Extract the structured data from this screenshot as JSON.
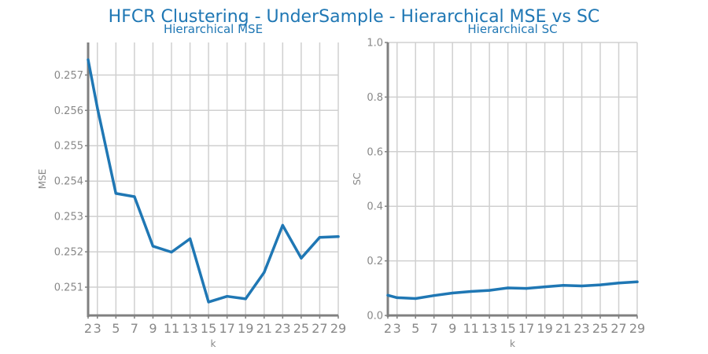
{
  "suptitle": "HFCR Clustering - UnderSample - Hierarchical MSE vs SC",
  "chart_data": [
    {
      "type": "line",
      "title": "Hierarchical MSE",
      "xlabel": "k",
      "ylabel": "MSE",
      "x": [
        2,
        3,
        5,
        7,
        9,
        11,
        13,
        15,
        17,
        19,
        21,
        23,
        25,
        27,
        29
      ],
      "xticks": [
        2,
        3,
        5,
        7,
        9,
        11,
        13,
        15,
        17,
        19,
        21,
        23,
        25,
        27,
        29
      ],
      "xtick_labels": [
        "2",
        "3",
        "5",
        "7",
        "9",
        "11",
        "13",
        "15",
        "17",
        "19",
        "21",
        "23",
        "25",
        "27",
        "29"
      ],
      "xlim": [
        2,
        29
      ],
      "series": [
        {
          "values": [
            0.25743,
            0.25607,
            0.25365,
            0.25356,
            0.25216,
            0.25199,
            0.25237,
            0.25058,
            0.25074,
            0.25067,
            0.25142,
            0.25275,
            0.25182,
            0.25241,
            0.25243
          ],
          "color": "#1f77b4"
        }
      ],
      "yticks": [
        0.251,
        0.252,
        0.253,
        0.254,
        0.255,
        0.256,
        0.257
      ],
      "ytick_labels": [
        "0.251",
        "0.252",
        "0.253",
        "0.254",
        "0.255",
        "0.256",
        "0.257"
      ],
      "ylim": [
        0.2502,
        0.25792
      ],
      "grid": true
    },
    {
      "type": "line",
      "title": "Hierarchical SC",
      "xlabel": "k",
      "ylabel": "SC",
      "x": [
        2,
        3,
        5,
        7,
        9,
        11,
        13,
        15,
        17,
        19,
        21,
        23,
        25,
        27,
        29
      ],
      "xticks": [
        2,
        3,
        5,
        7,
        9,
        11,
        13,
        15,
        17,
        19,
        21,
        23,
        25,
        27,
        29
      ],
      "xtick_labels": [
        "2",
        "3",
        "5",
        "7",
        "9",
        "11",
        "13",
        "15",
        "17",
        "19",
        "21",
        "23",
        "25",
        "27",
        "29"
      ],
      "xlim": [
        2,
        29
      ],
      "series": [
        {
          "values": [
            0.074,
            0.065,
            0.062,
            0.073,
            0.082,
            0.088,
            0.092,
            0.101,
            0.099,
            0.105,
            0.11,
            0.108,
            0.112,
            0.119,
            0.123
          ],
          "color": "#1f77b4"
        }
      ],
      "yticks": [
        0.0,
        0.2,
        0.4,
        0.6,
        0.8,
        1.0
      ],
      "ytick_labels": [
        "0.0",
        "0.2",
        "0.4",
        "0.6",
        "0.8",
        "1.0"
      ],
      "ylim": [
        0,
        1
      ],
      "grid": true
    }
  ]
}
